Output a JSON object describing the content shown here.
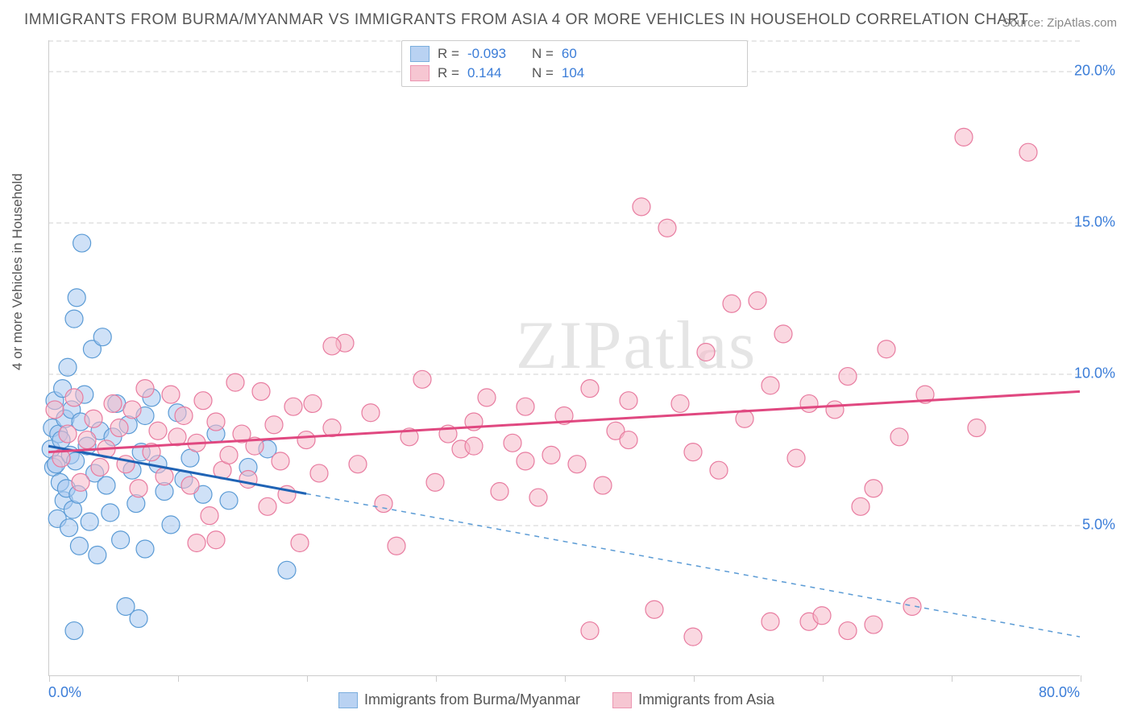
{
  "title": "IMMIGRANTS FROM BURMA/MYANMAR VS IMMIGRANTS FROM ASIA 4 OR MORE VEHICLES IN HOUSEHOLD CORRELATION CHART",
  "source": "Source: ZipAtlas.com",
  "y_axis_label": "4 or more Vehicles in Household",
  "watermark": "ZIPatlas",
  "chart": {
    "type": "scatter",
    "xlim": [
      0,
      80
    ],
    "ylim": [
      0,
      21
    ],
    "x_ticks": [
      0,
      10,
      20,
      30,
      40,
      50,
      60,
      70,
      80
    ],
    "x_tick_labels": {
      "0": "0.0%",
      "80": "80.0%"
    },
    "y_ticks": [
      5,
      10,
      15,
      20
    ],
    "y_tick_labels": [
      "5.0%",
      "10.0%",
      "15.0%",
      "20.0%"
    ],
    "background_color": "#ffffff",
    "grid_color": "#e8e8e8",
    "series": [
      {
        "name": "Immigrants from Burma/Myanmar",
        "fill": "#a8c8f0",
        "stroke": "#5b9bd5",
        "fill_opacity": 0.55,
        "marker_radius": 11,
        "R": "-0.093",
        "N": "60",
        "trend": {
          "y0": 7.6,
          "y1": 1.3,
          "x_solid_end": 20,
          "color": "#1f63b5",
          "dash_color": "#5b9bd5"
        },
        "points": [
          [
            0.2,
            7.5
          ],
          [
            0.3,
            8.2
          ],
          [
            0.4,
            6.9
          ],
          [
            0.5,
            9.1
          ],
          [
            0.6,
            7.0
          ],
          [
            0.7,
            5.2
          ],
          [
            0.8,
            8.0
          ],
          [
            0.9,
            6.4
          ],
          [
            1.0,
            7.8
          ],
          [
            1.1,
            9.5
          ],
          [
            1.2,
            5.8
          ],
          [
            1.3,
            8.5
          ],
          [
            1.4,
            6.2
          ],
          [
            1.5,
            10.2
          ],
          [
            1.6,
            4.9
          ],
          [
            1.7,
            7.3
          ],
          [
            1.8,
            8.8
          ],
          [
            1.9,
            5.5
          ],
          [
            2.0,
            11.8
          ],
          [
            2.1,
            7.1
          ],
          [
            2.2,
            12.5
          ],
          [
            2.3,
            6.0
          ],
          [
            2.4,
            4.3
          ],
          [
            2.5,
            8.4
          ],
          [
            2.6,
            14.3
          ],
          [
            2.8,
            9.3
          ],
          [
            3.0,
            7.6
          ],
          [
            3.2,
            5.1
          ],
          [
            3.4,
            10.8
          ],
          [
            3.6,
            6.7
          ],
          [
            3.8,
            4.0
          ],
          [
            4.0,
            8.1
          ],
          [
            4.2,
            11.2
          ],
          [
            4.5,
            6.3
          ],
          [
            4.8,
            5.4
          ],
          [
            5.0,
            7.9
          ],
          [
            5.3,
            9.0
          ],
          [
            5.6,
            4.5
          ],
          [
            6.0,
            2.3
          ],
          [
            6.2,
            8.3
          ],
          [
            6.5,
            6.8
          ],
          [
            6.8,
            5.7
          ],
          [
            7.0,
            1.9
          ],
          [
            7.2,
            7.4
          ],
          [
            7.5,
            8.6
          ],
          [
            8.0,
            9.2
          ],
          [
            8.5,
            7.0
          ],
          [
            9.0,
            6.1
          ],
          [
            9.5,
            5.0
          ],
          [
            10.0,
            8.7
          ],
          [
            10.5,
            6.5
          ],
          [
            11.0,
            7.2
          ],
          [
            2.0,
            1.5
          ],
          [
            12.0,
            6.0
          ],
          [
            13.0,
            8.0
          ],
          [
            14.0,
            5.8
          ],
          [
            15.5,
            6.9
          ],
          [
            17.0,
            7.5
          ],
          [
            18.5,
            3.5
          ],
          [
            7.5,
            4.2
          ]
        ]
      },
      {
        "name": "Immigrants from Asia",
        "fill": "#f5b8c8",
        "stroke": "#e87ca0",
        "fill_opacity": 0.55,
        "marker_radius": 11,
        "R": "0.144",
        "N": "104",
        "trend": {
          "y0": 7.4,
          "y1": 9.4,
          "x_solid_end": 80,
          "color": "#e04880",
          "dash_color": "#e87ca0"
        },
        "points": [
          [
            0.5,
            8.8
          ],
          [
            1.0,
            7.2
          ],
          [
            1.5,
            8.0
          ],
          [
            2.0,
            9.2
          ],
          [
            2.5,
            6.4
          ],
          [
            3.0,
            7.8
          ],
          [
            3.5,
            8.5
          ],
          [
            4.0,
            6.9
          ],
          [
            4.5,
            7.5
          ],
          [
            5.0,
            9.0
          ],
          [
            5.5,
            8.2
          ],
          [
            6.0,
            7.0
          ],
          [
            6.5,
            8.8
          ],
          [
            7.0,
            6.2
          ],
          [
            7.5,
            9.5
          ],
          [
            8.0,
            7.4
          ],
          [
            8.5,
            8.1
          ],
          [
            9.0,
            6.6
          ],
          [
            9.5,
            9.3
          ],
          [
            10.0,
            7.9
          ],
          [
            10.5,
            8.6
          ],
          [
            11.0,
            6.3
          ],
          [
            11.5,
            7.7
          ],
          [
            12.0,
            9.1
          ],
          [
            12.5,
            5.3
          ],
          [
            13.0,
            8.4
          ],
          [
            13.5,
            6.8
          ],
          [
            14.0,
            7.3
          ],
          [
            14.5,
            9.7
          ],
          [
            15.0,
            8.0
          ],
          [
            15.5,
            6.5
          ],
          [
            16.0,
            7.6
          ],
          [
            16.5,
            9.4
          ],
          [
            17.0,
            5.6
          ],
          [
            17.5,
            8.3
          ],
          [
            18.0,
            7.1
          ],
          [
            18.5,
            6.0
          ],
          [
            19.0,
            8.9
          ],
          [
            19.5,
            4.4
          ],
          [
            20.0,
            7.8
          ],
          [
            20.5,
            9.0
          ],
          [
            21.0,
            6.7
          ],
          [
            22.0,
            8.2
          ],
          [
            23.0,
            11.0
          ],
          [
            24.0,
            7.0
          ],
          [
            25.0,
            8.7
          ],
          [
            26.0,
            5.7
          ],
          [
            27.0,
            4.3
          ],
          [
            28.0,
            7.9
          ],
          [
            29.0,
            9.8
          ],
          [
            30.0,
            6.4
          ],
          [
            31.0,
            8.0
          ],
          [
            32.0,
            7.5
          ],
          [
            33.0,
            8.4
          ],
          [
            34.0,
            9.2
          ],
          [
            35.0,
            6.1
          ],
          [
            36.0,
            7.7
          ],
          [
            37.0,
            8.9
          ],
          [
            38.0,
            5.9
          ],
          [
            39.0,
            7.3
          ],
          [
            40.0,
            8.6
          ],
          [
            41.0,
            7.0
          ],
          [
            42.0,
            9.5
          ],
          [
            43.0,
            6.3
          ],
          [
            44.0,
            8.1
          ],
          [
            45.0,
            7.8
          ],
          [
            46.0,
            15.5
          ],
          [
            47.0,
            2.2
          ],
          [
            48.0,
            14.8
          ],
          [
            49.0,
            9.0
          ],
          [
            50.0,
            7.4
          ],
          [
            51.0,
            10.7
          ],
          [
            52.0,
            6.8
          ],
          [
            53.0,
            12.3
          ],
          [
            54.0,
            8.5
          ],
          [
            55.0,
            12.4
          ],
          [
            56.0,
            9.6
          ],
          [
            57.0,
            11.3
          ],
          [
            58.0,
            7.2
          ],
          [
            59.0,
            1.8
          ],
          [
            60.0,
            2.0
          ],
          [
            61.0,
            8.8
          ],
          [
            62.0,
            9.9
          ],
          [
            63.0,
            5.6
          ],
          [
            64.0,
            6.2
          ],
          [
            65.0,
            10.8
          ],
          [
            66.0,
            7.9
          ],
          [
            67.0,
            2.3
          ],
          [
            68.0,
            9.3
          ],
          [
            59.0,
            9.0
          ],
          [
            71.0,
            17.8
          ],
          [
            72.0,
            8.2
          ],
          [
            76.0,
            17.3
          ],
          [
            11.5,
            4.4
          ],
          [
            50.0,
            1.3
          ],
          [
            42.0,
            1.5
          ],
          [
            56.0,
            1.8
          ],
          [
            62.0,
            1.5
          ],
          [
            64.0,
            1.7
          ],
          [
            37.0,
            7.1
          ],
          [
            33.0,
            7.6
          ],
          [
            45.0,
            9.1
          ],
          [
            13.0,
            4.5
          ],
          [
            22.0,
            10.9
          ]
        ]
      }
    ]
  },
  "bottom_legend": {
    "series1": "Immigrants from Burma/Myanmar",
    "series2": "Immigrants from Asia"
  }
}
